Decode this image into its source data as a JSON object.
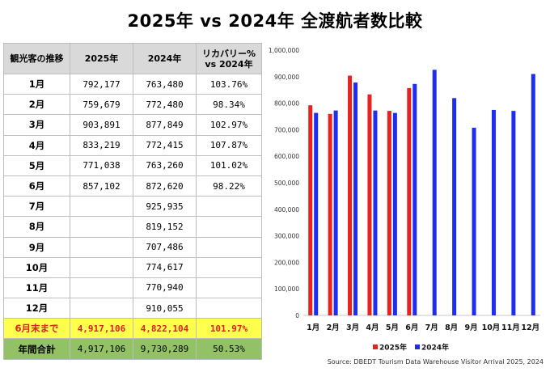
{
  "title": "2025年 vs 2024年 全渡航者数比較",
  "table": {
    "headers": [
      "観光客の推移",
      "2025年",
      "2024年",
      "リカバリー% vs 2024年"
    ],
    "rows": [
      [
        "1月",
        "792,177",
        "763,480",
        "103.76%"
      ],
      [
        "2月",
        "759,679",
        "772,480",
        "98.34%"
      ],
      [
        "3月",
        "903,891",
        "877,849",
        "102.97%"
      ],
      [
        "4月",
        "833,219",
        "772,415",
        "107.87%"
      ],
      [
        "5月",
        "771,038",
        "763,260",
        "101.02%"
      ],
      [
        "6月",
        "857,102",
        "872,620",
        "98.22%"
      ],
      [
        "7月",
        "",
        "925,935",
        ""
      ],
      [
        "8月",
        "",
        "819,152",
        ""
      ],
      [
        "9月",
        "",
        "707,486",
        ""
      ],
      [
        "10月",
        "",
        "774,617",
        ""
      ],
      [
        "11月",
        "",
        "770,940",
        ""
      ],
      [
        "12月",
        "",
        "910,055",
        ""
      ]
    ],
    "ytd": [
      "6月末まで",
      "4,917,106",
      "4,822,104",
      "101.97%"
    ],
    "total": [
      "年間合計",
      "4,917,106",
      "9,730,289",
      "50.53%"
    ]
  },
  "chart_data": {
    "type": "bar",
    "categories": [
      "1月",
      "2月",
      "3月",
      "4月",
      "5月",
      "6月",
      "7月",
      "8月",
      "9月",
      "10月",
      "11月",
      "12月"
    ],
    "series": [
      {
        "name": "2025年",
        "color": "#e8231e",
        "values": [
          792177,
          759679,
          903891,
          833219,
          771038,
          857102,
          null,
          null,
          null,
          null,
          null,
          null
        ]
      },
      {
        "name": "2024年",
        "color": "#1f2df0",
        "values": [
          763480,
          772480,
          877849,
          772415,
          763260,
          872620,
          925935,
          819152,
          707486,
          774617,
          770940,
          910055
        ]
      }
    ],
    "ylim": [
      0,
      1000000
    ],
    "yticks": [
      "0",
      "100,000",
      "200,000",
      "300,000",
      "400,000",
      "500,000",
      "600,000",
      "700,000",
      "800,000",
      "900,000",
      "1,000,000"
    ],
    "grid": false,
    "legend_position": "bottom"
  },
  "source": "Source: DBEDT Tourism Data Warehouse Visitor Arrival 2025, 2024"
}
